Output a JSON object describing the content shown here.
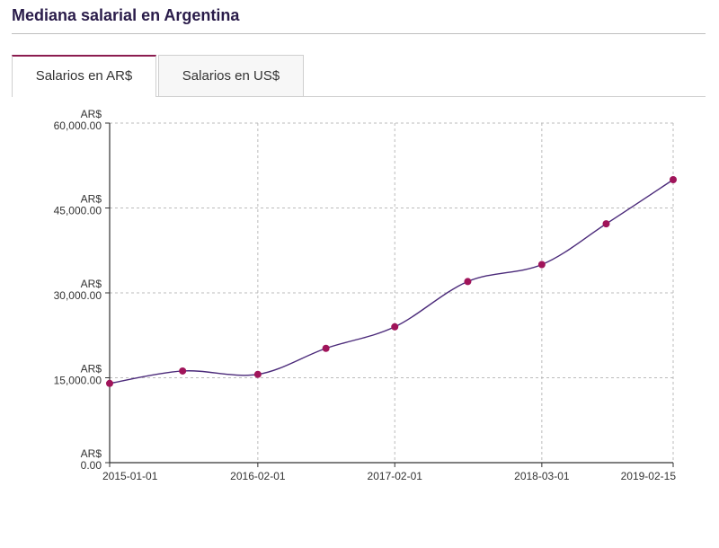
{
  "header": {
    "title": "Mediana salarial en Argentina"
  },
  "tabs": [
    {
      "label": "Salarios en AR$",
      "active": true
    },
    {
      "label": "Salarios en US$",
      "active": false
    }
  ],
  "colors": {
    "title": "#2a1c4a",
    "accent_tab": "#8b1c4f",
    "line": "#4b2a7a",
    "marker": "#a0145a",
    "grid": "#bbbbbb"
  },
  "chart_data": {
    "type": "line",
    "title": "",
    "xlabel": "",
    "ylabel": "",
    "x_axis_type": "date",
    "xlim": [
      "2015-01-01",
      "2019-02-15"
    ],
    "ylim": [
      0,
      60000
    ],
    "grid": true,
    "legend": "none",
    "x_ticks": [
      "2015-01-01",
      "2016-02-01",
      "2017-02-01",
      "2018-03-01",
      "2019-02-15"
    ],
    "y_ticks": [
      {
        "value": 0,
        "currency": "AR$",
        "amount": "0.00"
      },
      {
        "value": 15000,
        "currency": "AR$",
        "amount": "15,000.00"
      },
      {
        "value": 30000,
        "currency": "AR$",
        "amount": "30,000.00"
      },
      {
        "value": 45000,
        "currency": "AR$",
        "amount": "45,000.00"
      },
      {
        "value": 60000,
        "currency": "AR$",
        "amount": "60,000.00"
      }
    ],
    "series": [
      {
        "points": [
          {
            "x": "2015-01-01",
            "y": 14000
          },
          {
            "x": "2015-07-15",
            "y": 16200
          },
          {
            "x": "2016-02-01",
            "y": 15600
          },
          {
            "x": "2016-08-01",
            "y": 20200
          },
          {
            "x": "2017-02-01",
            "y": 24000
          },
          {
            "x": "2017-08-15",
            "y": 32000
          },
          {
            "x": "2018-03-01",
            "y": 35000
          },
          {
            "x": "2018-08-20",
            "y": 42200
          },
          {
            "x": "2019-02-15",
            "y": 50000
          }
        ]
      }
    ]
  }
}
